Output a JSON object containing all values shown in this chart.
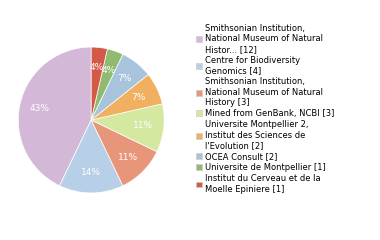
{
  "labels": [
    "Smithsonian Institution,\nNational Museum of Natural\nHistor... [12]",
    "Centre for Biodiversity\nGenomics [4]",
    "Smithsonian Institution,\nNational Museum of Natural\nHistory [3]",
    "Mined from GenBank, NCBI [3]",
    "Universite Montpellier 2,\nInstitut des Sciences de\nl'Evolution [2]",
    "OCEA Consult [2]",
    "Universite de Montpellier [1]",
    "Institut du Cerveau et de la\nMoelle Epiniere [1]"
  ],
  "values": [
    12,
    4,
    3,
    3,
    2,
    2,
    1,
    1
  ],
  "colors": [
    "#d4b8d8",
    "#b8cfe8",
    "#e8967a",
    "#d4e8a0",
    "#f0b060",
    "#a8c4dc",
    "#8fba70",
    "#d45a48"
  ],
  "startangle": 90,
  "background_color": "#ffffff",
  "text_fontsize": 6.5,
  "legend_fontsize": 6.0,
  "pct_color": "white"
}
